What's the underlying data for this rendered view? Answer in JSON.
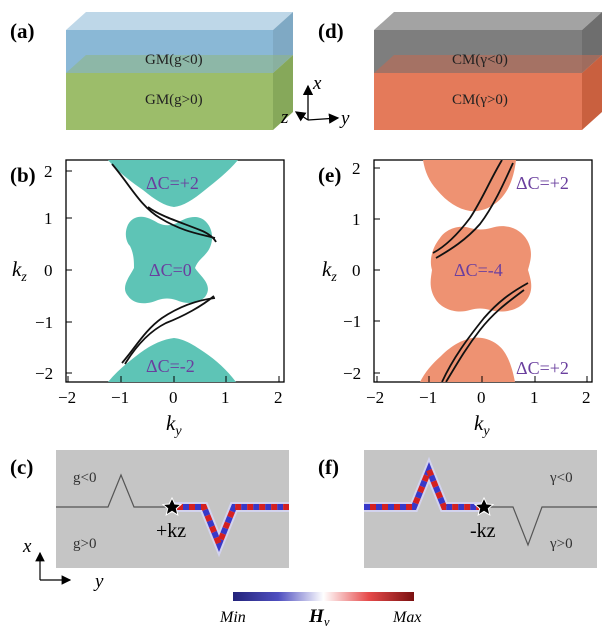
{
  "panels": {
    "a": {
      "label": "(a)",
      "top_text": "GM(g<0)",
      "bottom_text": "GM(g>0)",
      "top_color": "#8ab8d6",
      "bottom_color": "#9cbd6a"
    },
    "b": {
      "label": "(b)",
      "regions": [
        "ΔC=+2",
        "ΔC=0",
        "ΔC=-2"
      ],
      "region_color": "#5ec4b6"
    },
    "c": {
      "label": "(c)",
      "upper_text": "g<0",
      "lower_text": "g>0",
      "kz_text": "+kz"
    },
    "d": {
      "label": "(d)",
      "top_text": "CM(γ<0)",
      "bottom_text": "CM(γ>0)",
      "top_color": "#7e7e7e",
      "bottom_color": "#e47a5a"
    },
    "e": {
      "label": "(e)",
      "regions": [
        "ΔC=+2",
        "ΔC=-4",
        "ΔC=+2"
      ],
      "region_color": "#ee9272"
    },
    "f": {
      "label": "(f)",
      "upper_text": "γ<0",
      "lower_text": "γ>0",
      "kz_text": "-kz"
    }
  },
  "coord_axes": {
    "x": "x",
    "y": "y",
    "z": "z"
  },
  "colorbar": {
    "min_label": "Min",
    "max_label": "Max",
    "quantity": "Hy",
    "colors": [
      "#2a2a8a",
      "#ffffff",
      "#d42020"
    ]
  },
  "chart_data": [
    {
      "type": "scatter",
      "title": "",
      "xlabel": "ky",
      "ylabel": "kz",
      "xlim": [
        -2.2,
        2.2
      ],
      "ylim": [
        -2.2,
        2.2
      ],
      "xticks": [
        "−2",
        "−1",
        "0",
        "1",
        "2"
      ],
      "yticks": [
        "2",
        "1",
        "0",
        "−1",
        "−2"
      ],
      "annotations": [
        "ΔC=+2",
        "ΔC=0",
        "ΔC=-2"
      ]
    },
    {
      "type": "scatter",
      "title": "",
      "xlabel": "ky",
      "ylabel": "kz",
      "xlim": [
        -2.2,
        2.2
      ],
      "ylim": [
        -2.2,
        2.2
      ],
      "xticks": [
        "−2",
        "−1",
        "0",
        "1",
        "2"
      ],
      "yticks": [
        "2",
        "1",
        "0",
        "−1",
        "−2"
      ],
      "annotations": [
        "ΔC=+2",
        "ΔC=-4",
        "ΔC=+2"
      ]
    }
  ]
}
